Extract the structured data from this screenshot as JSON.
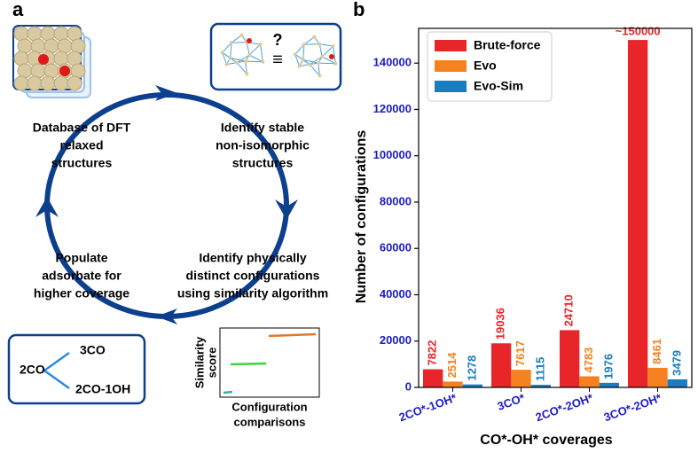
{
  "panel_a": {
    "label": "a",
    "steps": [
      [
        "Database of DFT",
        "relaxed",
        "structures"
      ],
      [
        "Identify stable",
        "non-isomorphic",
        "structures"
      ],
      [
        "Identify physically",
        "distinct configurations",
        "using similarity algorithm"
      ],
      [
        "Populate",
        "adsorbate for",
        "higher coverage"
      ]
    ],
    "question": "?",
    "equiv": "≡",
    "reaction": {
      "start": "2CO",
      "product_1": "3CO",
      "product_2": "2CO-1OH"
    },
    "inset": {
      "y_label": [
        "Similarity",
        "score"
      ],
      "x_label": [
        "Configuration",
        "comparisons"
      ]
    }
  },
  "chart_data": {
    "type": "bar",
    "panel_label": "b",
    "x_label": "CO*-OH* coverages",
    "y_label": "Number of configurations",
    "categories": [
      "2CO*-1OH*",
      "3CO*",
      "2CO*-2OH*",
      "3CO*-2OH*"
    ],
    "series": [
      {
        "name": "Brute-force",
        "color": "#e8262a",
        "values": [
          7822,
          19036,
          24710,
          150000
        ],
        "value_labels": [
          "7822",
          "19036",
          "24710",
          "~150000"
        ]
      },
      {
        "name": "Evo",
        "color": "#f5821f",
        "values": [
          2514,
          7617,
          4783,
          8461
        ]
      },
      {
        "name": "Evo-Sim",
        "color": "#1a7dbf",
        "values": [
          1278,
          1115,
          1976,
          3479
        ]
      }
    ],
    "ylim": [
      0,
      155000
    ],
    "yticks": [
      0,
      20000,
      40000,
      60000,
      80000,
      100000,
      120000,
      140000
    ],
    "legend": "upper left",
    "tick_color": "#1c1cc4"
  }
}
